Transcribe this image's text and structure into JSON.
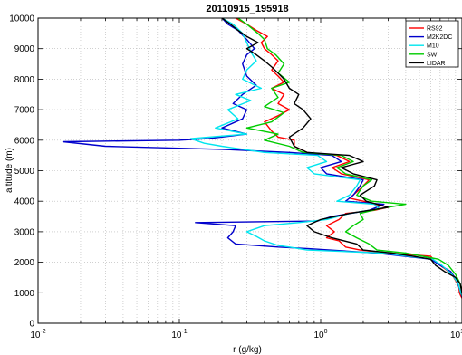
{
  "chart_data": {
    "type": "line",
    "title": "20110915_195918",
    "xlabel": "r (g/kg)",
    "ylabel": "altitude (m)",
    "x_scale": "log",
    "xlim": [
      0.01,
      10
    ],
    "ylim": [
      0,
      10000
    ],
    "x_ticks": [
      {
        "value": 0.01,
        "base": "10",
        "exp": "-2"
      },
      {
        "value": 0.1,
        "base": "10",
        "exp": "-1"
      },
      {
        "value": 1,
        "base": "10",
        "exp": "0"
      },
      {
        "value": 10,
        "base": "10",
        "exp": "1"
      }
    ],
    "y_ticks": [
      0,
      1000,
      2000,
      3000,
      4000,
      5000,
      6000,
      7000,
      8000,
      9000,
      10000
    ],
    "grid": "dotted, x minor log grid",
    "legend_position": "top-right",
    "series": [
      {
        "name": "RS92",
        "color": "#ff0000",
        "points": [
          [
            10.5,
            700
          ],
          [
            10.2,
            750
          ],
          [
            9.8,
            900
          ],
          [
            9.6,
            1000
          ],
          [
            9.5,
            1200
          ],
          [
            9.0,
            1400
          ],
          [
            8.5,
            1600
          ],
          [
            7.5,
            1800
          ],
          [
            6.5,
            2000
          ],
          [
            6.0,
            2200
          ],
          [
            3.0,
            2300
          ],
          [
            1.9,
            2400
          ],
          [
            1.5,
            2500
          ],
          [
            1.35,
            2700
          ],
          [
            1.1,
            2800
          ],
          [
            1.25,
            3000
          ],
          [
            1.1,
            3200
          ],
          [
            1.35,
            3400
          ],
          [
            1.5,
            3600
          ],
          [
            2.4,
            3700
          ],
          [
            3.0,
            3800
          ],
          [
            2.0,
            4000
          ],
          [
            1.6,
            4100
          ],
          [
            1.9,
            4400
          ],
          [
            2.2,
            4700
          ],
          [
            1.4,
            4900
          ],
          [
            1.2,
            5100
          ],
          [
            1.6,
            5300
          ],
          [
            1.3,
            5500
          ],
          [
            0.8,
            5600
          ],
          [
            0.65,
            5800
          ],
          [
            0.65,
            6000
          ],
          [
            0.5,
            6100
          ],
          [
            0.45,
            6300
          ],
          [
            0.4,
            6600
          ],
          [
            0.5,
            6800
          ],
          [
            0.6,
            7000
          ],
          [
            0.5,
            7200
          ],
          [
            0.55,
            7500
          ],
          [
            0.45,
            7700
          ],
          [
            0.55,
            7900
          ],
          [
            0.5,
            8100
          ],
          [
            0.45,
            8300
          ],
          [
            0.5,
            8600
          ],
          [
            0.45,
            8800
          ],
          [
            0.4,
            9000
          ],
          [
            0.38,
            9200
          ],
          [
            0.42,
            9400
          ],
          [
            0.35,
            9600
          ],
          [
            0.3,
            9800
          ],
          [
            0.25,
            10000
          ]
        ]
      },
      {
        "name": "M2K2DC",
        "color": "#0000cc",
        "points": [
          [
            10.5,
            700
          ],
          [
            10.1,
            800
          ],
          [
            9.8,
            1000
          ],
          [
            9.2,
            1400
          ],
          [
            8.3,
            1700
          ],
          [
            7.0,
            1900
          ],
          [
            6.0,
            2100
          ],
          [
            2.5,
            2300
          ],
          [
            0.8,
            2450
          ],
          [
            0.5,
            2500
          ],
          [
            0.25,
            2600
          ],
          [
            0.22,
            2800
          ],
          [
            0.24,
            3000
          ],
          [
            0.25,
            3200
          ],
          [
            0.13,
            3300
          ],
          [
            0.95,
            3350
          ],
          [
            1.2,
            3500
          ],
          [
            2.2,
            3700
          ],
          [
            2.8,
            3900
          ],
          [
            1.5,
            4000
          ],
          [
            1.7,
            4200
          ],
          [
            1.9,
            4500
          ],
          [
            2.0,
            4700
          ],
          [
            1.1,
            4900
          ],
          [
            1.0,
            5100
          ],
          [
            1.4,
            5300
          ],
          [
            1.2,
            5500
          ],
          [
            0.6,
            5600
          ],
          [
            0.2,
            5700
          ],
          [
            0.03,
            5800
          ],
          [
            0.015,
            5950
          ],
          [
            0.1,
            6000
          ],
          [
            0.16,
            6050
          ],
          [
            0.3,
            6200
          ],
          [
            0.2,
            6400
          ],
          [
            0.28,
            6700
          ],
          [
            0.3,
            7000
          ],
          [
            0.24,
            7200
          ],
          [
            0.28,
            7500
          ],
          [
            0.35,
            7800
          ],
          [
            0.3,
            8100
          ],
          [
            0.28,
            8500
          ],
          [
            0.3,
            8800
          ],
          [
            0.34,
            9000
          ],
          [
            0.3,
            9300
          ],
          [
            0.26,
            9600
          ],
          [
            0.22,
            9800
          ],
          [
            0.2,
            10000
          ]
        ]
      },
      {
        "name": "M10",
        "color": "#00e5ee",
        "points": [
          [
            10.5,
            700
          ],
          [
            10.2,
            800
          ],
          [
            9.8,
            1000
          ],
          [
            9.4,
            1300
          ],
          [
            8.5,
            1600
          ],
          [
            7.2,
            1900
          ],
          [
            6.2,
            2100
          ],
          [
            2.8,
            2300
          ],
          [
            0.8,
            2400
          ],
          [
            0.6,
            2500
          ],
          [
            0.5,
            2550
          ],
          [
            0.4,
            2700
          ],
          [
            0.35,
            2850
          ],
          [
            0.3,
            3000
          ],
          [
            0.4,
            3200
          ],
          [
            0.7,
            3300
          ],
          [
            1.1,
            3400
          ],
          [
            1.6,
            3600
          ],
          [
            2.6,
            3750
          ],
          [
            2.4,
            3900
          ],
          [
            1.3,
            4000
          ],
          [
            1.6,
            4200
          ],
          [
            1.8,
            4500
          ],
          [
            1.9,
            4700
          ],
          [
            0.9,
            4900
          ],
          [
            0.8,
            5100
          ],
          [
            1.1,
            5300
          ],
          [
            0.95,
            5500
          ],
          [
            0.4,
            5600
          ],
          [
            0.2,
            5800
          ],
          [
            0.15,
            5900
          ],
          [
            0.12,
            6050
          ],
          [
            0.3,
            6200
          ],
          [
            0.18,
            6400
          ],
          [
            0.26,
            6700
          ],
          [
            0.22,
            7000
          ],
          [
            0.32,
            7300
          ],
          [
            0.25,
            7500
          ],
          [
            0.38,
            7700
          ],
          [
            0.28,
            8000
          ],
          [
            0.3,
            8300
          ],
          [
            0.35,
            8600
          ],
          [
            0.32,
            8900
          ],
          [
            0.3,
            9200
          ],
          [
            0.28,
            9500
          ],
          [
            0.24,
            9800
          ],
          [
            0.2,
            10000
          ]
        ]
      },
      {
        "name": "SW",
        "color": "#00cc00",
        "points": [
          [
            10.6,
            700
          ],
          [
            10.3,
            800
          ],
          [
            10.0,
            1000
          ],
          [
            9.7,
            1300
          ],
          [
            9.0,
            1600
          ],
          [
            8.0,
            1900
          ],
          [
            6.8,
            2100
          ],
          [
            4.0,
            2300
          ],
          [
            2.5,
            2400
          ],
          [
            2.2,
            2600
          ],
          [
            1.8,
            2800
          ],
          [
            1.5,
            3000
          ],
          [
            1.7,
            3200
          ],
          [
            2.0,
            3400
          ],
          [
            1.9,
            3600
          ],
          [
            2.6,
            3750
          ],
          [
            4.0,
            3900
          ],
          [
            2.3,
            4000
          ],
          [
            1.8,
            4200
          ],
          [
            2.0,
            4500
          ],
          [
            2.3,
            4700
          ],
          [
            1.5,
            4900
          ],
          [
            1.3,
            5100
          ],
          [
            1.7,
            5300
          ],
          [
            1.4,
            5500
          ],
          [
            0.75,
            5600
          ],
          [
            0.6,
            5800
          ],
          [
            0.4,
            6000
          ],
          [
            0.5,
            6200
          ],
          [
            0.3,
            6400
          ],
          [
            0.45,
            6600
          ],
          [
            0.55,
            6900
          ],
          [
            0.4,
            7100
          ],
          [
            0.5,
            7400
          ],
          [
            0.45,
            7700
          ],
          [
            0.6,
            7900
          ],
          [
            0.5,
            8200
          ],
          [
            0.55,
            8500
          ],
          [
            0.48,
            8800
          ],
          [
            0.42,
            9000
          ],
          [
            0.4,
            9300
          ],
          [
            0.36,
            9500
          ],
          [
            0.3,
            9800
          ],
          [
            0.26,
            10000
          ]
        ]
      },
      {
        "name": "LIDAR",
        "color": "#000000",
        "points": [
          [
            11.0,
            700
          ],
          [
            10.5,
            800
          ],
          [
            10.0,
            1000
          ],
          [
            9.7,
            1300
          ],
          [
            9.0,
            1500
          ],
          [
            7.5,
            1700
          ],
          [
            6.5,
            1900
          ],
          [
            6.0,
            2100
          ],
          [
            4.5,
            2200
          ],
          [
            3.2,
            2300
          ],
          [
            2.0,
            2400
          ],
          [
            1.8,
            2600
          ],
          [
            1.2,
            2800
          ],
          [
            0.9,
            3000
          ],
          [
            0.8,
            3200
          ],
          [
            1.0,
            3400
          ],
          [
            1.6,
            3600
          ],
          [
            2.2,
            3700
          ],
          [
            3.0,
            3800
          ],
          [
            2.1,
            4000
          ],
          [
            1.9,
            4200
          ],
          [
            2.4,
            4500
          ],
          [
            2.5,
            4700
          ],
          [
            1.7,
            4900
          ],
          [
            1.4,
            5100
          ],
          [
            2.0,
            5300
          ],
          [
            1.6,
            5500
          ],
          [
            0.8,
            5600
          ],
          [
            0.65,
            5800
          ],
          [
            0.6,
            6100
          ],
          [
            0.75,
            6400
          ],
          [
            0.85,
            6700
          ],
          [
            0.75,
            7000
          ],
          [
            0.65,
            7200
          ],
          [
            0.7,
            7500
          ],
          [
            0.6,
            7700
          ],
          [
            0.55,
            8000
          ],
          [
            0.5,
            8200
          ],
          [
            0.45,
            8400
          ],
          [
            0.4,
            8600
          ],
          [
            0.35,
            8800
          ],
          [
            0.3,
            9000
          ],
          [
            0.36,
            9200
          ],
          [
            0.3,
            9400
          ],
          [
            0.26,
            9600
          ],
          [
            0.23,
            9800
          ],
          [
            0.2,
            10000
          ]
        ]
      }
    ]
  }
}
